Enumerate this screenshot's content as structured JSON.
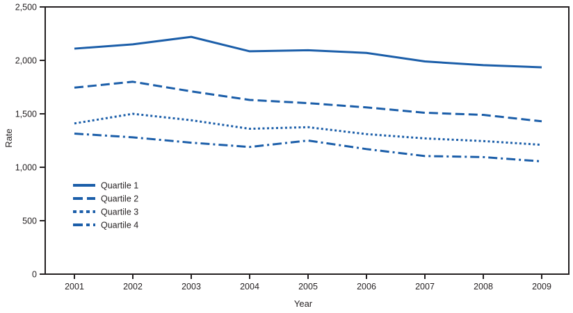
{
  "figure": {
    "background": "#ffffff"
  },
  "colors": {
    "line": "#1B5EA9",
    "axis": "#231f20",
    "text": "#231f20"
  },
  "chart_data": {
    "type": "line",
    "title": "",
    "xlabel": "Year",
    "ylabel": "Rate",
    "x": [
      "2001",
      "2002",
      "2003",
      "2004",
      "2005",
      "2006",
      "2007",
      "2008",
      "2009"
    ],
    "ylim": [
      0,
      2500
    ],
    "yticks": {
      "values": [
        0,
        500,
        1000,
        1500,
        2000,
        2500
      ],
      "labels": [
        "0",
        "500",
        "1,000",
        "1,500",
        "2,000",
        "2,500"
      ]
    },
    "grid": false,
    "legend_position": "inside-left-middle",
    "series": [
      {
        "name": "Quartile 1",
        "line_style": "solid",
        "values": [
          2110,
          2150,
          2220,
          2085,
          2095,
          2070,
          1990,
          1955,
          1935
        ]
      },
      {
        "name": "Quartile 2",
        "line_style": "dashed",
        "values": [
          1745,
          1800,
          1710,
          1630,
          1600,
          1560,
          1510,
          1490,
          1430
        ]
      },
      {
        "name": "Quartile 3",
        "line_style": "dotted",
        "values": [
          1410,
          1500,
          1440,
          1360,
          1375,
          1310,
          1270,
          1245,
          1210
        ]
      },
      {
        "name": "Quartile 4",
        "line_style": "dash-dot",
        "values": [
          1315,
          1280,
          1230,
          1190,
          1250,
          1170,
          1105,
          1095,
          1055
        ]
      }
    ]
  }
}
